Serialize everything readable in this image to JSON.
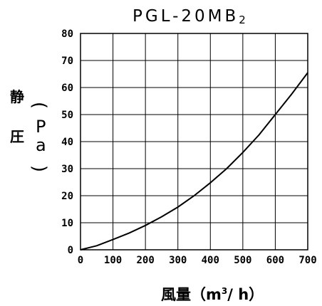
{
  "chart_data": {
    "type": "line",
    "title": "PGL-20MB",
    "title_subscript": "2",
    "ylabel_chars": [
      "静",
      "圧"
    ],
    "ylabel_unit": "Pa",
    "xlabel": "風量（m",
    "xlabel_sup": "3",
    "xlabel_end": "/ h）",
    "xlim": [
      0,
      700
    ],
    "ylim": [
      0,
      80
    ],
    "x_ticks": [
      "0",
      "100",
      "200",
      "300",
      "400",
      "500",
      "600",
      "700"
    ],
    "y_ticks": [
      "0",
      "10",
      "20",
      "30",
      "40",
      "50",
      "60",
      "70",
      "80"
    ],
    "grid": true,
    "series": [
      {
        "x": [
          0,
          50,
          100,
          150,
          200,
          250,
          300,
          350,
          400,
          450,
          500,
          550,
          600,
          650,
          700
        ],
        "y": [
          0,
          1.5,
          3.8,
          6.2,
          9.0,
          12.2,
          15.8,
          20.0,
          24.8,
          30.0,
          36.0,
          42.5,
          50.0,
          57.5,
          65.5
        ]
      }
    ]
  }
}
